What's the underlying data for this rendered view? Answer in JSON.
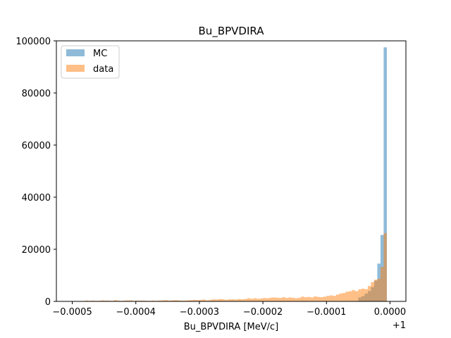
{
  "chart_data": {
    "type": "bar",
    "title": "Bu_BPVDIRA",
    "xlabel": "Bu_BPVDIRA [MeV/c]",
    "ylabel": "",
    "offset_label": "+1",
    "xlim": [
      -0.000525,
      2.5e-05
    ],
    "ylim": [
      0,
      100000
    ],
    "x_ticks": [
      -0.0005,
      -0.0004,
      -0.0003,
      -0.0002,
      -0.0001,
      0.0
    ],
    "x_tick_labels": [
      "−0.0005",
      "−0.0004",
      "−0.0003",
      "−0.0002",
      "−0.0001",
      "0.0000"
    ],
    "y_ticks": [
      0,
      20000,
      40000,
      60000,
      80000,
      100000
    ],
    "y_tick_labels": [
      "0",
      "20000",
      "40000",
      "60000",
      "80000",
      "100000"
    ],
    "bin_edges_range": [
      -0.0005,
      0.0
    ],
    "bin_count": 100,
    "legend": {
      "placement": "top-left"
    },
    "series": [
      {
        "name": "MC",
        "color": "#1f77b4",
        "opacity": 0.5,
        "values": [
          0,
          0,
          0,
          0,
          0,
          0,
          0,
          0,
          0,
          0,
          0,
          0,
          0,
          0,
          0,
          0,
          0,
          0,
          0,
          0,
          0,
          0,
          0,
          0,
          0,
          0,
          0,
          0,
          0,
          0,
          0,
          0,
          0,
          0,
          0,
          0,
          0,
          0,
          0,
          0,
          0,
          0,
          0,
          0,
          0,
          0,
          0,
          0,
          0,
          0,
          0,
          0,
          0,
          0,
          0,
          0,
          0,
          0,
          0,
          0,
          0,
          0,
          0,
          0,
          0,
          0,
          0,
          0,
          0,
          0,
          0,
          0,
          0,
          0,
          0,
          0,
          0,
          0,
          0,
          0,
          0,
          0,
          0,
          0,
          0,
          0,
          0,
          0,
          0,
          0,
          1500,
          2000,
          3000,
          4000,
          5500,
          8000,
          14500,
          25500,
          97500,
          0
        ]
      },
      {
        "name": "data",
        "color": "#ff7f0e",
        "opacity": 0.5,
        "values": [
          0,
          0,
          0,
          100,
          300,
          200,
          300,
          200,
          200,
          400,
          300,
          300,
          200,
          500,
          300,
          200,
          300,
          400,
          400,
          200,
          300,
          300,
          300,
          200,
          200,
          300,
          200,
          300,
          400,
          500,
          300,
          400,
          500,
          400,
          300,
          300,
          400,
          500,
          600,
          500,
          600,
          700,
          400,
          600,
          800,
          700,
          900,
          800,
          600,
          800,
          800,
          700,
          900,
          800,
          900,
          1200,
          1000,
          1200,
          1000,
          1100,
          1300,
          1200,
          1400,
          1500,
          1400,
          1300,
          1600,
          1300,
          1500,
          1400,
          1200,
          1400,
          1800,
          1600,
          1700,
          1500,
          1900,
          1700,
          1600,
          1800,
          2100,
          2300,
          2100,
          2600,
          3000,
          3200,
          3700,
          3900,
          4300,
          3900,
          4600,
          4900,
          4700,
          5900,
          7400,
          8300,
          8700,
          13200,
          26200,
          0
        ]
      }
    ]
  }
}
